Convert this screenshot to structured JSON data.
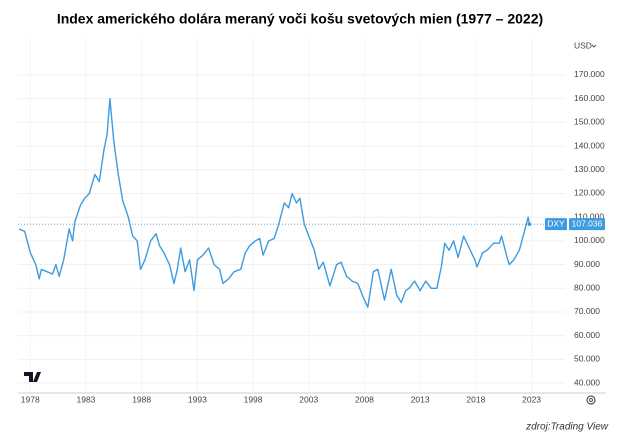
{
  "chart_data": {
    "type": "line",
    "title": "Index amerického dolára meraný voči košu svetových mien (1977 – 2022)",
    "currency": "USD",
    "source": "zdroj:Trading View",
    "x": [
      1977.0,
      1977.5,
      1978.0,
      1978.5,
      1978.8,
      1979.0,
      1979.5,
      1980.0,
      1980.3,
      1980.6,
      1981.0,
      1981.5,
      1981.8,
      1982.0,
      1982.5,
      1982.9,
      1983.3,
      1983.8,
      1984.2,
      1984.6,
      1984.9,
      1985.15,
      1985.5,
      1985.9,
      1986.3,
      1986.8,
      1987.2,
      1987.6,
      1987.9,
      1988.3,
      1988.8,
      1989.3,
      1989.6,
      1990.0,
      1990.5,
      1990.9,
      1991.2,
      1991.5,
      1991.9,
      1992.3,
      1992.7,
      1993.0,
      1993.5,
      1994.0,
      1994.5,
      1995.0,
      1995.3,
      1995.8,
      1996.3,
      1996.9,
      1997.3,
      1997.7,
      1998.2,
      1998.6,
      1998.9,
      1999.4,
      1999.9,
      2000.3,
      2000.8,
      2001.2,
      2001.5,
      2001.9,
      2002.2,
      2002.6,
      2003.0,
      2003.5,
      2003.9,
      2004.3,
      2004.9,
      2005.5,
      2005.9,
      2006.4,
      2006.9,
      2007.4,
      2007.9,
      2008.3,
      2008.8,
      2009.2,
      2009.8,
      2010.4,
      2010.9,
      2011.3,
      2011.7,
      2012.0,
      2012.5,
      2013.0,
      2013.5,
      2014.0,
      2014.5,
      2014.9,
      2015.2,
      2015.6,
      2016.0,
      2016.4,
      2016.9,
      2017.4,
      2017.9,
      2018.1,
      2018.6,
      2019.0,
      2019.6,
      2020.1,
      2020.3,
      2020.8,
      2021.0,
      2021.4,
      2021.9,
      2022.3,
      2022.7,
      2022.8
    ],
    "series": [
      {
        "name": "DXY",
        "color": "#3d9be0",
        "values": [
          105,
          104,
          95,
          90,
          84,
          88,
          87,
          86,
          90,
          85,
          92,
          105,
          100,
          108,
          115,
          118,
          120,
          128,
          125,
          138,
          145,
          160,
          142,
          128,
          117,
          110,
          102,
          100,
          88,
          92,
          100,
          103,
          98,
          95,
          90,
          82,
          88,
          97,
          87,
          92,
          79,
          92,
          94,
          97,
          90,
          88,
          82,
          84,
          87,
          88,
          95,
          98,
          100,
          101,
          94,
          100,
          101,
          107,
          116,
          114,
          120,
          116,
          118,
          107,
          102,
          96,
          88,
          91,
          81,
          90,
          91,
          85,
          83,
          82,
          76,
          72,
          87,
          88,
          75,
          88,
          77,
          74,
          79,
          80,
          83,
          79,
          83,
          80,
          80,
          89,
          99,
          96,
          100,
          93,
          102,
          97,
          92,
          89,
          95,
          96,
          99,
          99,
          102,
          93,
          90,
          92,
          96,
          103,
          110,
          107.036
        ]
      }
    ],
    "xlim": [
      1976.9,
      2026.0
    ],
    "xticks": [
      1978,
      1983,
      1988,
      1993,
      1998,
      2003,
      2008,
      2013,
      2018,
      2023
    ],
    "ylim": [
      35.8,
      185.6
    ],
    "yticks": [
      {
        "value": 40,
        "label": "40.000"
      },
      {
        "value": 50,
        "label": "50.000"
      },
      {
        "value": 60,
        "label": "60.000"
      },
      {
        "value": 70,
        "label": "70.000"
      },
      {
        "value": 80,
        "label": "80.000"
      },
      {
        "value": 90,
        "label": "90.000"
      },
      {
        "value": 100,
        "label": "100.000"
      },
      {
        "value": 110,
        "label": "110.000"
      },
      {
        "value": 120,
        "label": "120.000"
      },
      {
        "value": 130,
        "label": "130.000"
      },
      {
        "value": 140,
        "label": "140.000"
      },
      {
        "value": 150,
        "label": "150.000"
      },
      {
        "value": 160,
        "label": "160.000"
      },
      {
        "value": 170,
        "label": "170.000"
      }
    ],
    "grid": true
  }
}
